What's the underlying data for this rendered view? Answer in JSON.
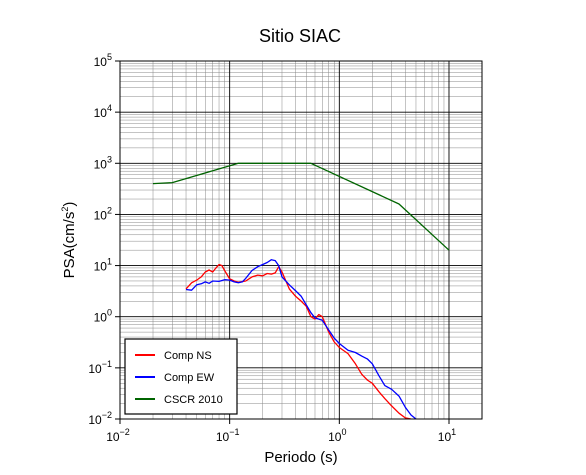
{
  "chart_data": {
    "type": "line",
    "title": "Sitio SIAC",
    "xlabel": "Periodo (s)",
    "ylabel": "PSA(cm/s",
    "ylabel_sup": "2",
    "ylabel_close": ")",
    "xscale": "log",
    "yscale": "log",
    "xlim": [
      0.01,
      20
    ],
    "ylim": [
      0.01,
      100000
    ],
    "grid": true,
    "legend_position": "bottom-left",
    "x_ticks": [
      {
        "base": "10",
        "exp": "−2",
        "value": 0.01
      },
      {
        "base": "10",
        "exp": "−1",
        "value": 0.1
      },
      {
        "base": "10",
        "exp": "0",
        "value": 1
      },
      {
        "base": "10",
        "exp": "1",
        "value": 10
      }
    ],
    "y_ticks": [
      {
        "base": "10",
        "exp": "−2",
        "value": 0.01
      },
      {
        "base": "10",
        "exp": "−1",
        "value": 0.1
      },
      {
        "base": "10",
        "exp": "0",
        "value": 1
      },
      {
        "base": "10",
        "exp": "1",
        "value": 10
      },
      {
        "base": "10",
        "exp": "2",
        "value": 100
      },
      {
        "base": "10",
        "exp": "3",
        "value": 1000
      },
      {
        "base": "10",
        "exp": "4",
        "value": 10000
      },
      {
        "base": "10",
        "exp": "5",
        "value": 100000
      }
    ],
    "series": [
      {
        "name": "Comp NS",
        "color": "#ff0000",
        "points": [
          [
            0.04,
            3.5
          ],
          [
            0.045,
            4.6
          ],
          [
            0.05,
            5.2
          ],
          [
            0.055,
            6.0
          ],
          [
            0.06,
            7.5
          ],
          [
            0.065,
            8.2
          ],
          [
            0.07,
            7.5
          ],
          [
            0.075,
            9.0
          ],
          [
            0.08,
            10.5
          ],
          [
            0.085,
            10.0
          ],
          [
            0.09,
            8.0
          ],
          [
            0.1,
            5.5
          ],
          [
            0.11,
            5.0
          ],
          [
            0.12,
            4.7
          ],
          [
            0.14,
            5.0
          ],
          [
            0.16,
            6.0
          ],
          [
            0.18,
            6.5
          ],
          [
            0.2,
            6.3
          ],
          [
            0.22,
            7.0
          ],
          [
            0.24,
            6.8
          ],
          [
            0.26,
            7.2
          ],
          [
            0.28,
            9.5
          ],
          [
            0.3,
            7.5
          ],
          [
            0.35,
            3.5
          ],
          [
            0.4,
            2.5
          ],
          [
            0.45,
            2.0
          ],
          [
            0.5,
            1.6
          ],
          [
            0.55,
            1.0
          ],
          [
            0.6,
            0.9
          ],
          [
            0.65,
            1.1
          ],
          [
            0.7,
            1.0
          ],
          [
            0.8,
            0.5
          ],
          [
            0.9,
            0.32
          ],
          [
            1.0,
            0.25
          ],
          [
            1.2,
            0.19
          ],
          [
            1.4,
            0.12
          ],
          [
            1.6,
            0.075
          ],
          [
            1.8,
            0.058
          ],
          [
            2.0,
            0.05
          ],
          [
            2.3,
            0.034
          ],
          [
            2.6,
            0.025
          ],
          [
            3.0,
            0.018
          ],
          [
            3.5,
            0.013
          ],
          [
            4.0,
            0.0105
          ],
          [
            4.5,
            0.01
          ]
        ]
      },
      {
        "name": "Comp EW",
        "color": "#0000ff",
        "points": [
          [
            0.04,
            3.4
          ],
          [
            0.045,
            3.3
          ],
          [
            0.05,
            4.2
          ],
          [
            0.055,
            4.4
          ],
          [
            0.06,
            4.8
          ],
          [
            0.065,
            4.5
          ],
          [
            0.07,
            5.0
          ],
          [
            0.08,
            4.9
          ],
          [
            0.09,
            5.3
          ],
          [
            0.1,
            5.2
          ],
          [
            0.11,
            4.8
          ],
          [
            0.12,
            4.6
          ],
          [
            0.13,
            4.8
          ],
          [
            0.14,
            5.6
          ],
          [
            0.16,
            8.0
          ],
          [
            0.18,
            9.5
          ],
          [
            0.2,
            10.5
          ],
          [
            0.22,
            11.5
          ],
          [
            0.24,
            13.0
          ],
          [
            0.26,
            12.5
          ],
          [
            0.28,
            10.0
          ],
          [
            0.3,
            6.0
          ],
          [
            0.35,
            4.2
          ],
          [
            0.4,
            3.2
          ],
          [
            0.45,
            2.5
          ],
          [
            0.5,
            1.7
          ],
          [
            0.55,
            1.2
          ],
          [
            0.6,
            0.95
          ],
          [
            0.7,
            0.85
          ],
          [
            0.8,
            0.55
          ],
          [
            0.9,
            0.38
          ],
          [
            1.0,
            0.3
          ],
          [
            1.2,
            0.22
          ],
          [
            1.4,
            0.2
          ],
          [
            1.6,
            0.17
          ],
          [
            1.8,
            0.15
          ],
          [
            2.0,
            0.12
          ],
          [
            2.3,
            0.07
          ],
          [
            2.6,
            0.045
          ],
          [
            3.0,
            0.038
          ],
          [
            3.5,
            0.028
          ],
          [
            4.0,
            0.017
          ],
          [
            4.5,
            0.012
          ],
          [
            5.0,
            0.01
          ]
        ]
      },
      {
        "name": "CSCR 2010",
        "color": "#006400",
        "points": [
          [
            0.02,
            400
          ],
          [
            0.03,
            420
          ],
          [
            0.12,
            1000
          ],
          [
            0.55,
            1000
          ],
          [
            3.5,
            160
          ],
          [
            10.0,
            20
          ]
        ]
      }
    ]
  }
}
